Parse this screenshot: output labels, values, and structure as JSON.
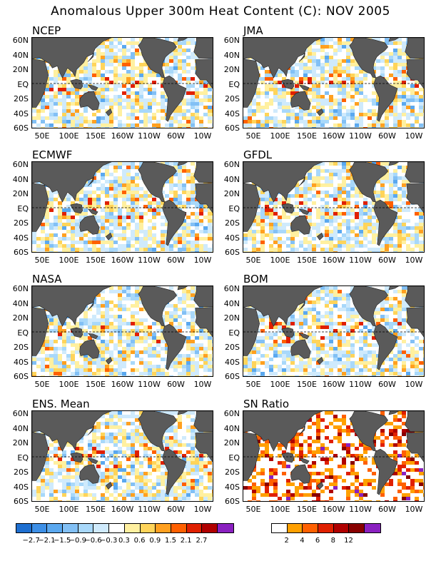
{
  "title": "Anomalous Upper 300m Heat Content (C): NOV 2005",
  "y_ticks": [
    "60N",
    "40N",
    "20N",
    "EQ",
    "20S",
    "40S",
    "60S"
  ],
  "x_ticks": [
    "50E",
    "100E",
    "150E",
    "160W",
    "110W",
    "60W",
    "10W"
  ],
  "land_color": "#5a5a5a",
  "panels": [
    {
      "label": "NCEP",
      "seed": 11
    },
    {
      "label": "JMA",
      "seed": 23
    },
    {
      "label": "ECMWF",
      "seed": 37
    },
    {
      "label": "GFDL",
      "seed": 41
    },
    {
      "label": "NASA",
      "seed": 53
    },
    {
      "label": "BOM",
      "seed": 67
    },
    {
      "label": "ENS. Mean",
      "seed": 79
    },
    {
      "label": "SN Ratio",
      "seed": 97
    }
  ],
  "chart_data": {
    "type": "heatmap",
    "xlim_lon": [
      20,
      380
    ],
    "ylim_lat": [
      -65,
      65
    ],
    "anomaly_colorbar": {
      "colors": [
        "#1e6fd0",
        "#3d8fe6",
        "#5aa8ef",
        "#82c0f5",
        "#a8d8fa",
        "#cfeafc",
        "#ffffff",
        "#fff0a0",
        "#ffd45a",
        "#ffa020",
        "#ff6000",
        "#e02000",
        "#b00000",
        "#8a20c0"
      ],
      "tick_labels": [
        "-2.7",
        "-2.1",
        "-1.5",
        "-0.9",
        "-0.6",
        "-0.3",
        "0.3",
        "0.6",
        "0.9",
        "1.5",
        "2.1",
        "2.7"
      ]
    },
    "sn_colorbar": {
      "colors": [
        "#ffffff",
        "#ffa000",
        "#ff6000",
        "#e02000",
        "#b00000",
        "#880000",
        "#8a20c0"
      ],
      "tick_labels": [
        "2",
        "4",
        "6",
        "8",
        "12"
      ]
    }
  }
}
